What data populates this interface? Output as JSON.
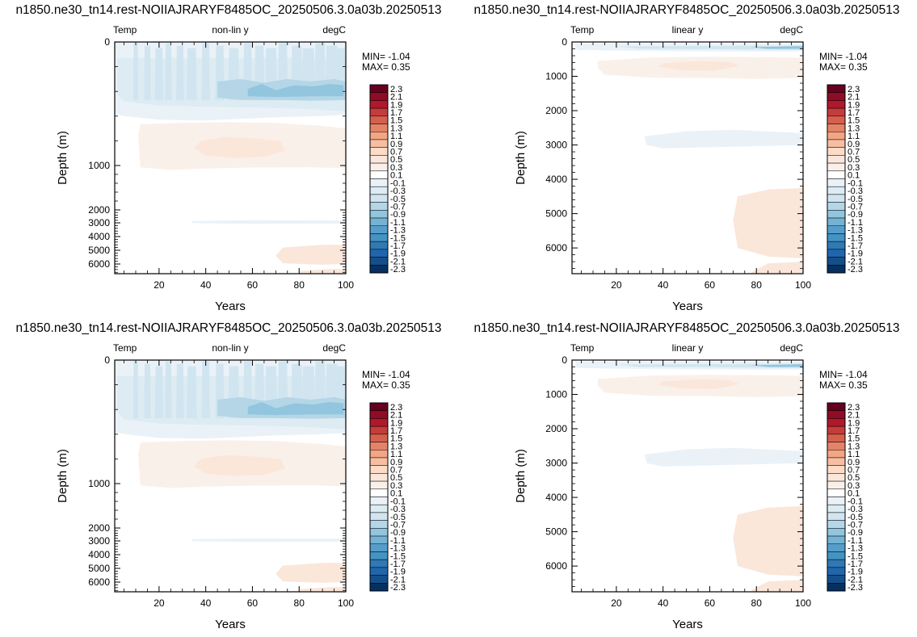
{
  "colorbar": {
    "levels": [
      "2.3",
      "2.1",
      "1.9",
      "1.7",
      "1.5",
      "1.3",
      "1.1",
      "0.9",
      "0.7",
      "0.5",
      "0.3",
      "0.1",
      "-0.1",
      "-0.3",
      "-0.5",
      "-0.7",
      "-0.9",
      "-1.1",
      "-1.3",
      "-1.5",
      "-1.7",
      "-1.9",
      "-2.1",
      "-2.3"
    ],
    "colors": [
      "#67001f",
      "#8f0c25",
      "#b2182b",
      "#c43c3c",
      "#d6604d",
      "#e58368",
      "#f4a582",
      "#f7bea2",
      "#fddbc7",
      "#fbe6da",
      "#faf0ea",
      "#ffffff",
      "#eaf2f8",
      "#ddebf3",
      "#d1e5f0",
      "#b4d6e7",
      "#92c5de",
      "#75b3d5",
      "#559ecb",
      "#4393c3",
      "#2f79b5",
      "#2166ac",
      "#144f8a",
      "#053061"
    ]
  },
  "chart_data": [
    {
      "type": "heatmap",
      "title": "n1850.ne30_tn14.rest-NOIIAJRARYF8485OC_20250506.3.0a03b.20250513",
      "left_label": "Temp",
      "center_label": "non-lin y",
      "right_label": "degC",
      "min_label": "MIN= -1.04",
      "max_label": "MAX=  0.35",
      "xlabel": "Years",
      "ylabel": "Depth (m)",
      "xlim": [
        1,
        100
      ],
      "ylim": [
        6700,
        0
      ],
      "y_scale": "non-linear",
      "xticks": [
        "20",
        "40",
        "60",
        "80",
        "100"
      ],
      "yticks": [
        "0",
        "1000",
        "2000",
        "3000",
        "4000",
        "5000",
        "6000"
      ],
      "range": {
        "min": -1.04,
        "max": 0.35
      }
    },
    {
      "type": "heatmap",
      "title": "n1850.ne30_tn14.rest-NOIIAJRARYF8485OC_20250506.3.0a03b.20250513",
      "left_label": "Temp",
      "center_label": "linear y",
      "right_label": "degC",
      "min_label": "MIN= -1.04",
      "max_label": "MAX=  0.35",
      "xlabel": "Years",
      "ylabel": "Depth (m)",
      "xlim": [
        1,
        100
      ],
      "ylim": [
        6750,
        0
      ],
      "y_scale": "linear",
      "xticks": [
        "20",
        "40",
        "60",
        "80",
        "100"
      ],
      "yticks": [
        "0",
        "1000",
        "2000",
        "3000",
        "4000",
        "5000",
        "6000"
      ],
      "range": {
        "min": -1.04,
        "max": 0.35
      }
    },
    {
      "type": "heatmap",
      "title": "n1850.ne30_tn14.rest-NOIIAJRARYF8485OC_20250506.3.0a03b.20250513",
      "left_label": "Temp",
      "center_label": "non-lin y",
      "right_label": "degC",
      "min_label": "MIN= -1.04",
      "max_label": "MAX=  0.35",
      "xlabel": "Years",
      "ylabel": "Depth (m)",
      "xlim": [
        1,
        100
      ],
      "ylim": [
        6700,
        0
      ],
      "y_scale": "non-linear",
      "xticks": [
        "20",
        "40",
        "60",
        "80",
        "100"
      ],
      "yticks": [
        "0",
        "1000",
        "2000",
        "3000",
        "4000",
        "5000",
        "6000"
      ],
      "range": {
        "min": -1.04,
        "max": 0.35
      }
    },
    {
      "type": "heatmap",
      "title": "n1850.ne30_tn14.rest-NOIIAJRARYF8485OC_20250506.3.0a03b.20250513",
      "left_label": "Temp",
      "center_label": "linear y",
      "right_label": "degC",
      "min_label": "MIN= -1.04",
      "max_label": "MAX=  0.35",
      "xlabel": "Years",
      "ylabel": "Depth (m)",
      "xlim": [
        1,
        100
      ],
      "ylim": [
        6750,
        0
      ],
      "y_scale": "linear",
      "xticks": [
        "20",
        "40",
        "60",
        "80",
        "100"
      ],
      "yticks": [
        "0",
        "1000",
        "2000",
        "3000",
        "4000",
        "5000",
        "6000"
      ],
      "range": {
        "min": -1.04,
        "max": 0.35
      }
    }
  ]
}
